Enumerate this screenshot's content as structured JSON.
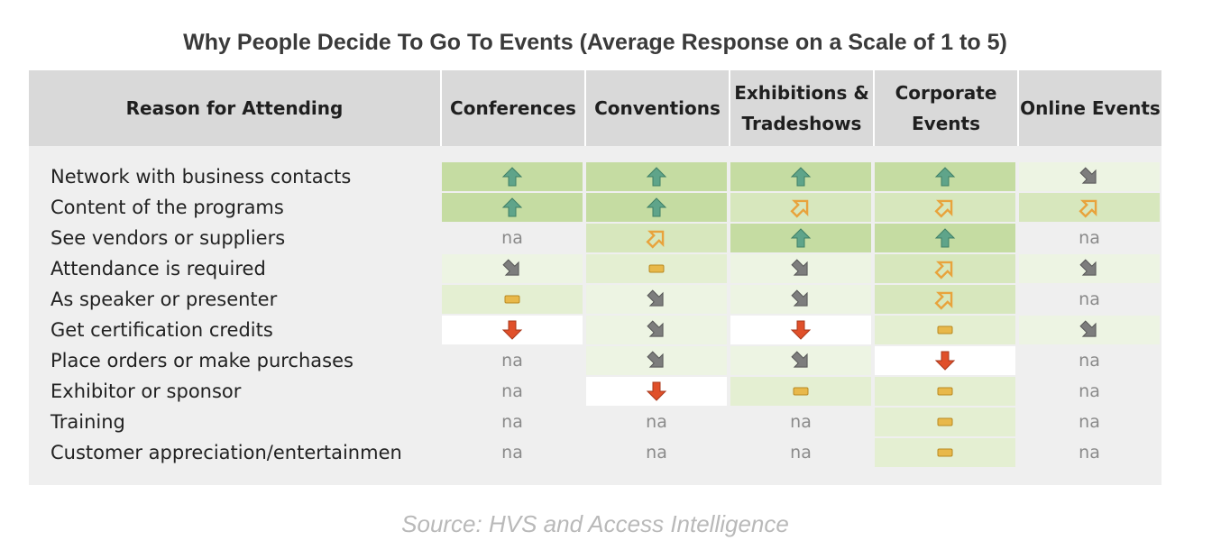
{
  "title": "Why People Decide To Go To Events (Average Response on a Scale of 1 to 5)",
  "source": "Source: HVS and Access Intelligence",
  "colors": {
    "green_strong": "#c5dca2",
    "green_mid": "#d7e7bd",
    "green_light": "#e4efd2",
    "green_pale": "#edf4e3",
    "white": "#ffffff",
    "neutral": "#efefef",
    "up_arrow": "#5fa48a",
    "up_right_arrow": "#e8a33c",
    "down_right_arrow": "#7d7d7d",
    "flat_dash": "#e8b84a",
    "down_arrow": "#e0502a"
  },
  "chart_data": {
    "type": "table",
    "title": "Why People Decide To Go To Events (Average Response on a Scale of 1 to 5)",
    "columns": [
      "Reason for Attending",
      "Conferences",
      "Conventions",
      "Exhibitions &\nTradeshows",
      "Corporate\nEvents",
      "Online Events"
    ],
    "legend_icons": {
      "up": "up-arrow-icon",
      "up-right": "up-right-arrow-icon",
      "flat": "flat-dash-icon",
      "down-right": "down-right-arrow-icon",
      "down": "down-arrow-icon",
      "na": "na"
    },
    "rows": [
      {
        "reason": "Network with business contacts",
        "cells": [
          {
            "v": "up",
            "bg": "green_strong"
          },
          {
            "v": "up",
            "bg": "green_strong"
          },
          {
            "v": "up",
            "bg": "green_strong"
          },
          {
            "v": "up",
            "bg": "green_strong"
          },
          {
            "v": "down-right",
            "bg": "green_pale"
          }
        ]
      },
      {
        "reason": "Content of the programs",
        "cells": [
          {
            "v": "up",
            "bg": "green_strong"
          },
          {
            "v": "up",
            "bg": "green_strong"
          },
          {
            "v": "up-right",
            "bg": "green_mid"
          },
          {
            "v": "up-right",
            "bg": "green_mid"
          },
          {
            "v": "up-right",
            "bg": "green_mid"
          }
        ]
      },
      {
        "reason": "See vendors or suppliers",
        "cells": [
          {
            "v": "na",
            "bg": "neutral"
          },
          {
            "v": "up-right",
            "bg": "green_mid"
          },
          {
            "v": "up",
            "bg": "green_strong"
          },
          {
            "v": "up",
            "bg": "green_strong"
          },
          {
            "v": "na",
            "bg": "neutral"
          }
        ]
      },
      {
        "reason": "Attendance is required",
        "cells": [
          {
            "v": "down-right",
            "bg": "green_pale"
          },
          {
            "v": "flat",
            "bg": "green_light"
          },
          {
            "v": "down-right",
            "bg": "green_pale"
          },
          {
            "v": "up-right",
            "bg": "green_mid"
          },
          {
            "v": "down-right",
            "bg": "green_pale"
          }
        ]
      },
      {
        "reason": "As speaker or presenter",
        "cells": [
          {
            "v": "flat",
            "bg": "green_light"
          },
          {
            "v": "down-right",
            "bg": "green_pale"
          },
          {
            "v": "down-right",
            "bg": "green_pale"
          },
          {
            "v": "up-right",
            "bg": "green_mid"
          },
          {
            "v": "na",
            "bg": "neutral"
          }
        ]
      },
      {
        "reason": "Get certification credits",
        "cells": [
          {
            "v": "down",
            "bg": "white"
          },
          {
            "v": "down-right",
            "bg": "green_pale"
          },
          {
            "v": "down",
            "bg": "white"
          },
          {
            "v": "flat",
            "bg": "green_light"
          },
          {
            "v": "down-right",
            "bg": "green_pale"
          }
        ]
      },
      {
        "reason": "Place orders or make purchases",
        "cells": [
          {
            "v": "na",
            "bg": "neutral"
          },
          {
            "v": "down-right",
            "bg": "green_pale"
          },
          {
            "v": "down-right",
            "bg": "green_pale"
          },
          {
            "v": "down",
            "bg": "white"
          },
          {
            "v": "na",
            "bg": "neutral"
          }
        ]
      },
      {
        "reason": "Exhibitor or sponsor",
        "cells": [
          {
            "v": "na",
            "bg": "neutral"
          },
          {
            "v": "down",
            "bg": "white"
          },
          {
            "v": "flat",
            "bg": "green_light"
          },
          {
            "v": "flat",
            "bg": "green_light"
          },
          {
            "v": "na",
            "bg": "neutral"
          }
        ]
      },
      {
        "reason": "Training",
        "cells": [
          {
            "v": "na",
            "bg": "neutral"
          },
          {
            "v": "na",
            "bg": "neutral"
          },
          {
            "v": "na",
            "bg": "neutral"
          },
          {
            "v": "flat",
            "bg": "green_light"
          },
          {
            "v": "na",
            "bg": "neutral"
          }
        ]
      },
      {
        "reason": "Customer appreciation/entertainmen",
        "cells": [
          {
            "v": "na",
            "bg": "neutral"
          },
          {
            "v": "na",
            "bg": "neutral"
          },
          {
            "v": "na",
            "bg": "neutral"
          },
          {
            "v": "flat",
            "bg": "green_light"
          },
          {
            "v": "na",
            "bg": "neutral"
          }
        ]
      }
    ]
  }
}
